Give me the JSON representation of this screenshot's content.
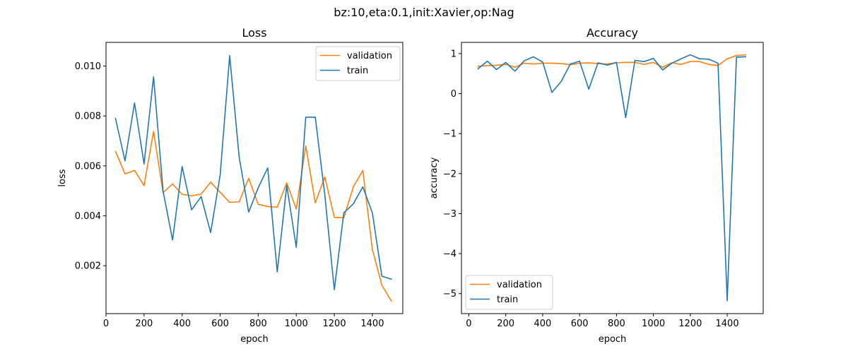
{
  "figure": {
    "suptitle": "bz:10,eta:0.1,init:Xavier,op:Nag"
  },
  "colors": {
    "validation": "#ff7f0e",
    "train": "#1f77b4",
    "axes": "#000000",
    "legend_border": "#cccccc"
  },
  "chart_data": [
    {
      "type": "line",
      "title": "Loss",
      "xlabel": "epoch",
      "ylabel": "loss",
      "xlim": [
        0,
        1560
      ],
      "ylim": [
        8e-05,
        0.01095
      ],
      "xticks": [
        0,
        200,
        400,
        600,
        800,
        1000,
        1200,
        1400
      ],
      "yticks": [
        0.002,
        0.004,
        0.006,
        0.008,
        0.01
      ],
      "ytick_labels": [
        "0.002",
        "0.004",
        "0.006",
        "0.008",
        "0.010"
      ],
      "legend": "top-right",
      "grid": false,
      "x": [
        50,
        100,
        150,
        200,
        250,
        300,
        350,
        400,
        450,
        500,
        550,
        600,
        650,
        700,
        750,
        800,
        850,
        900,
        950,
        1000,
        1050,
        1100,
        1150,
        1200,
        1250,
        1300,
        1350,
        1400,
        1450,
        1500
      ],
      "series": [
        {
          "name": "validation",
          "color_key": "validation",
          "values": [
            0.00658,
            0.00568,
            0.00582,
            0.00521,
            0.00738,
            0.00493,
            0.00528,
            0.00486,
            0.0048,
            0.00487,
            0.00535,
            0.00494,
            0.00454,
            0.00456,
            0.0055,
            0.00446,
            0.00437,
            0.00435,
            0.00532,
            0.00427,
            0.0068,
            0.00452,
            0.00556,
            0.00394,
            0.00392,
            0.00516,
            0.00582,
            0.00265,
            0.00122,
            0.00058
          ]
        },
        {
          "name": "train",
          "color_key": "train",
          "values": [
            0.0079,
            0.0062,
            0.00852,
            0.00608,
            0.00957,
            0.00499,
            0.00303,
            0.00598,
            0.00424,
            0.00477,
            0.00333,
            0.00563,
            0.01042,
            0.00635,
            0.00415,
            0.00512,
            0.00592,
            0.00175,
            0.00522,
            0.00274,
            0.00795,
            0.00795,
            0.00484,
            0.00104,
            0.00412,
            0.00448,
            0.00516,
            0.00412,
            0.00158,
            0.00146
          ]
        }
      ]
    },
    {
      "type": "line",
      "title": "Accuracy",
      "xlabel": "epoch",
      "ylabel": "accuracy",
      "xlim": [
        -40,
        1595
      ],
      "ylim": [
        -5.5,
        1.28
      ],
      "xticks": [
        0,
        200,
        400,
        600,
        800,
        1000,
        1200,
        1400
      ],
      "yticks": [
        -5,
        -4,
        -3,
        -2,
        -1,
        0,
        1
      ],
      "ytick_labels": [
        "−5",
        "−4",
        "−3",
        "−2",
        "−1",
        "0",
        "1"
      ],
      "legend": "bottom-left",
      "grid": false,
      "x": [
        50,
        100,
        150,
        200,
        250,
        300,
        350,
        400,
        450,
        500,
        550,
        600,
        650,
        700,
        750,
        800,
        850,
        900,
        950,
        1000,
        1050,
        1100,
        1150,
        1200,
        1250,
        1300,
        1350,
        1400,
        1450,
        1500
      ],
      "series": [
        {
          "name": "validation",
          "color_key": "validation",
          "values": [
            0.68,
            0.7,
            0.71,
            0.73,
            0.66,
            0.76,
            0.74,
            0.76,
            0.76,
            0.75,
            0.72,
            0.76,
            0.77,
            0.75,
            0.74,
            0.77,
            0.78,
            0.78,
            0.73,
            0.78,
            0.66,
            0.77,
            0.73,
            0.8,
            0.8,
            0.73,
            0.7,
            0.87,
            0.95,
            0.97
          ]
        },
        {
          "name": "train",
          "color_key": "train",
          "values": [
            0.62,
            0.81,
            0.6,
            0.78,
            0.56,
            0.82,
            0.92,
            0.79,
            0.03,
            0.3,
            0.74,
            0.81,
            0.11,
            0.77,
            0.71,
            0.78,
            -0.6,
            0.83,
            0.8,
            0.88,
            0.59,
            0.76,
            0.87,
            0.97,
            0.87,
            0.86,
            0.76,
            -5.18,
            0.91,
            0.92
          ]
        }
      ]
    }
  ]
}
